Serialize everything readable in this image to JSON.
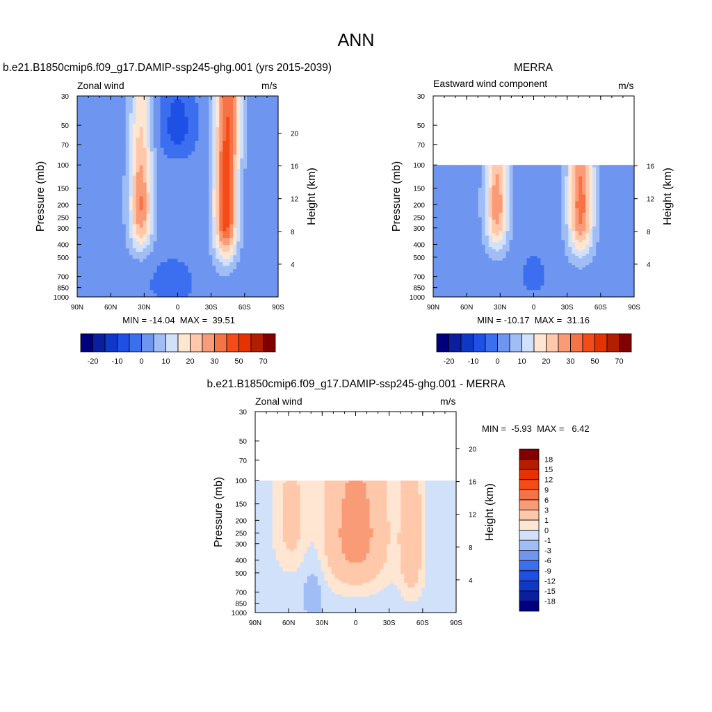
{
  "page": {
    "title": "ANN"
  },
  "colormaps": {
    "full": [
      "#00007f",
      "#0a1ea0",
      "#0f37c8",
      "#1e50e6",
      "#3c6ef0",
      "#6e96f0",
      "#a0bef5",
      "#d2e1fa",
      "#ffe6d2",
      "#ffc8aa",
      "#fa9b78",
      "#f57346",
      "#f54b19",
      "#e63200",
      "#b41e00",
      "#820000"
    ],
    "diff": [
      "#00007f",
      "#0a1ea0",
      "#0f37c8",
      "#1e50e6",
      "#3c6ef0",
      "#6e96f0",
      "#a0bef5",
      "#d2e1fa",
      "#ffe6d2",
      "#ffc8aa",
      "#fa9b78",
      "#f57346",
      "#f54b19",
      "#e63200",
      "#b41e00",
      "#820000"
    ]
  },
  "chart_data": [
    {
      "type": "heatmap",
      "id": "model",
      "title": "b.e21.B1850cmip6.f09_g17.DAMIP-ssp245-ghg.001 (yrs 2015-2039)",
      "left_string": "Zonal wind",
      "right_string": "m/s",
      "ylabel": "Pressure (mb)",
      "ylabel_right": "Height (km)",
      "x_ticks": [
        "90N",
        "60N",
        "30N",
        "0",
        "30S",
        "60S",
        "90S"
      ],
      "p_ticks": [
        "30",
        "50",
        "70",
        "100",
        "150",
        "200",
        "250",
        "300",
        "400",
        "500",
        "700",
        "850",
        "1000"
      ],
      "z_ticks": [
        "4",
        "8",
        "12",
        "16",
        "20"
      ],
      "plim": [
        30,
        1000
      ],
      "min": -14.04,
      "max": 39.51,
      "min_max_text": "MIN = -14.04  MAX =  39.51",
      "top_pressure": 30,
      "colorbar_orientation": "horizontal",
      "colorbar_labels": [
        "-20",
        "-10",
        "0",
        "10",
        "20",
        "30",
        "50",
        "70"
      ],
      "levels": [
        -25,
        -20,
        -15,
        -10,
        -5,
        0,
        5,
        10,
        15,
        20,
        25,
        30,
        40,
        50,
        60,
        70
      ],
      "field": {
        "uniform": -2.5,
        "jets": [
          {
            "lat": 33,
            "p": 200,
            "amp": 28,
            "wlat": 10,
            "wp": 220
          },
          {
            "lat": -43,
            "p": 200,
            "amp": 38,
            "wlat": 10,
            "wp": 300
          },
          {
            "lat": -52,
            "p": 40,
            "amp": 10,
            "wlat": 8,
            "wp": 60
          }
        ],
        "easterlies": [
          {
            "lat": 0,
            "p": 50,
            "amp": -10,
            "wlat": 16,
            "wp": 35
          },
          {
            "lat": 5,
            "p": 800,
            "amp": -6,
            "wlat": 20,
            "wp": 300
          }
        ]
      }
    },
    {
      "type": "heatmap",
      "id": "obs",
      "title": "MERRA",
      "left_string": "Eastward wind component",
      "right_string": "m/s",
      "ylabel": "Pressure (mb)",
      "ylabel_right": "Height (km)",
      "x_ticks": [
        "90N",
        "60N",
        "30N",
        "0",
        "30S",
        "60S",
        "90S"
      ],
      "p_ticks": [
        "30",
        "50",
        "70",
        "100",
        "150",
        "200",
        "250",
        "300",
        "400",
        "500",
        "700",
        "850",
        "1000"
      ],
      "z_ticks": [
        "4",
        "8",
        "12",
        "16"
      ],
      "plim": [
        30,
        1000
      ],
      "min": -10.17,
      "max": 31.16,
      "min_max_text": "MIN = -10.17  MAX =  31.16",
      "top_pressure": 100,
      "colorbar_orientation": "horizontal",
      "colorbar_labels": [
        "-20",
        "-10",
        "0",
        "10",
        "20",
        "30",
        "50",
        "70"
      ],
      "levels": [
        -25,
        -20,
        -15,
        -10,
        -5,
        0,
        5,
        10,
        15,
        20,
        25,
        30,
        40,
        50,
        60,
        70
      ],
      "field": {
        "uniform": -2.5,
        "jets": [
          {
            "lat": 33,
            "p": 200,
            "amp": 26,
            "wlat": 10,
            "wp": 220
          },
          {
            "lat": -42,
            "p": 200,
            "amp": 30,
            "wlat": 11,
            "wp": 260
          }
        ],
        "easterlies": [
          {
            "lat": 0,
            "p": 700,
            "amp": -4,
            "wlat": 15,
            "wp": 300
          }
        ]
      }
    },
    {
      "type": "heatmap",
      "id": "diff",
      "title": "b.e21.B1850cmip6.f09_g17.DAMIP-ssp245-ghg.001 - MERRA",
      "left_string": "Zonal wind",
      "right_string": "m/s",
      "ylabel": "Pressure (mb)",
      "ylabel_right": "Height (km)",
      "x_ticks": [
        "90N",
        "60N",
        "30N",
        "0",
        "30S",
        "60S",
        "90S"
      ],
      "p_ticks": [
        "30",
        "50",
        "70",
        "100",
        "150",
        "200",
        "250",
        "300",
        "400",
        "500",
        "700",
        "850",
        "1000"
      ],
      "z_ticks": [
        "4",
        "8",
        "12",
        "16",
        "20"
      ],
      "plim": [
        30,
        1000
      ],
      "min": -5.93,
      "max": 6.42,
      "min_max_text": "MIN =  -5.93  MAX =   6.42",
      "top_pressure": 100,
      "colorbar_orientation": "vertical",
      "colorbar_labels": [
        "-18",
        "-15",
        "-12",
        "-9",
        "-6",
        "-3",
        "-1",
        "0",
        "1",
        "3",
        "6",
        "9",
        "12",
        "15",
        "18"
      ],
      "levels": [
        -18,
        -15,
        -12,
        -9,
        -6,
        -3,
        -1,
        0,
        1,
        3,
        6,
        9,
        12,
        15,
        18
      ],
      "field": {
        "uniform": -0.5,
        "jets": [
          {
            "lat": 0,
            "p": 250,
            "amp": 4.5,
            "wlat": 28,
            "wp": 350
          },
          {
            "lat": -50,
            "p": 300,
            "amp": 3,
            "wlat": 10,
            "wp": 400
          },
          {
            "lat": 58,
            "p": 200,
            "amp": 2,
            "wlat": 14,
            "wp": 250
          }
        ],
        "easterlies": [
          {
            "lat": 38,
            "p": 700,
            "amp": -1.2,
            "wlat": 10,
            "wp": 400
          }
        ]
      }
    }
  ]
}
